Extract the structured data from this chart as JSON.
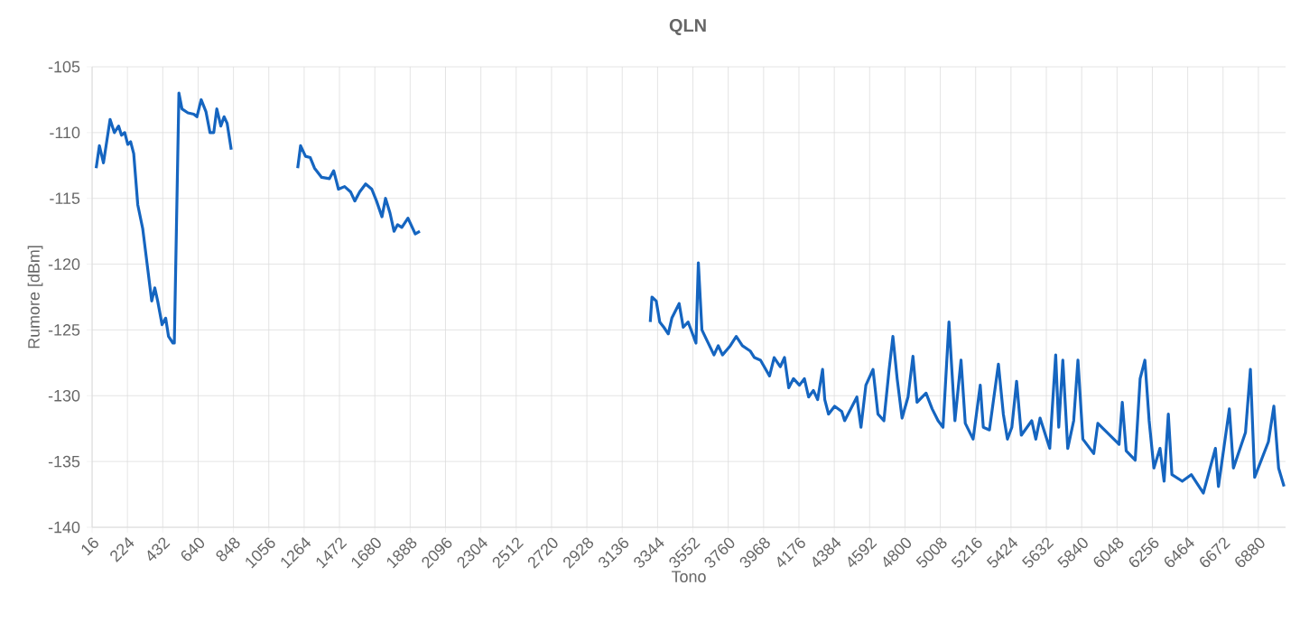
{
  "chart_data": {
    "type": "line",
    "title": "QLN",
    "xlabel": "Tono",
    "ylabel": "Rumore [dBm]",
    "x": [
      40,
      59,
      83,
      122,
      147,
      172,
      189,
      208,
      226,
      243,
      261,
      285,
      314,
      367,
      385,
      402,
      428,
      449,
      466,
      492,
      500,
      527,
      545,
      580,
      615,
      633,
      658,
      686,
      710,
      732,
      750,
      774,
      793,
      811,
      835,
      1056,
      1226,
      1243,
      1272,
      1300,
      1325,
      1367,
      1413,
      1438,
      1466,
      1502,
      1537,
      1562,
      1591,
      1626,
      1662,
      1690,
      1722,
      1743,
      1769,
      1793,
      1814,
      1839,
      1875,
      1918,
      1945,
      2720,
      3301,
      3311,
      3336,
      3357,
      3381,
      3407,
      3428,
      3471,
      3495,
      3524,
      3570,
      3584,
      3605,
      3631,
      3676,
      3701,
      3726,
      3772,
      3807,
      3843,
      3889,
      3914,
      3950,
      4003,
      4030,
      4066,
      4091,
      4116,
      4144,
      4179,
      4208,
      4233,
      4261,
      4286,
      4315,
      4328,
      4350,
      4386,
      4428,
      4445,
      4517,
      4541,
      4570,
      4612,
      4641,
      4676,
      4705,
      4729,
      4754,
      4783,
      4818,
      4847,
      4871,
      4924,
      4960,
      4995,
      5024,
      5059,
      5094,
      5130,
      5155,
      5201,
      5243,
      5261,
      5297,
      5350,
      5379,
      5403,
      5429,
      5457,
      5485,
      5546,
      5570,
      5595,
      5652,
      5687,
      5705,
      5729,
      5758,
      5793,
      5818,
      5847,
      5911,
      5935,
      6060,
      6079,
      6102,
      6155,
      6184,
      6212,
      6237,
      6265,
      6301,
      6325,
      6350,
      6371,
      6432,
      6485,
      6556,
      6627,
      6645,
      6709,
      6733,
      6804,
      6833,
      6858,
      6939,
      6971,
      6999,
      7031
    ],
    "series": [
      {
        "color": "#1565c0",
        "values": [
          -112.7,
          -111,
          -112.3,
          -109,
          -110,
          -109.5,
          -110.2,
          -110,
          -110.9,
          -110.7,
          -111.6,
          -115.5,
          -117.3,
          -122.8,
          -121.8,
          -122.8,
          -124.6,
          -124.1,
          -125.5,
          -126,
          -126,
          -107,
          -108.2,
          -108.5,
          -108.6,
          -108.8,
          -107.5,
          -108.4,
          -110,
          -110,
          -108.2,
          -109.5,
          -108.8,
          -109.3,
          -111.3,
          null,
          -112.7,
          -111,
          -111.8,
          -111.9,
          -112.7,
          -113.4,
          -113.5,
          -112.9,
          -114.3,
          -114.1,
          -114.5,
          -115.2,
          -114.5,
          -113.9,
          -114.3,
          -115.2,
          -116.4,
          -115,
          -116.1,
          -117.5,
          -117,
          -117.2,
          -116.5,
          -117.7,
          -117.5,
          null,
          -124.4,
          -122.5,
          -122.8,
          -124.4,
          -124.8,
          -125.3,
          -124.1,
          -123,
          -124.8,
          -124.4,
          -126,
          -119.9,
          -125,
          -125.7,
          -126.9,
          -126.2,
          -126.9,
          -126.2,
          -125.5,
          -126.2,
          -126.6,
          -127.1,
          -127.3,
          -128.5,
          -127.1,
          -127.8,
          -127.1,
          -129.4,
          -128.7,
          -129.2,
          -128.7,
          -130.1,
          -129.6,
          -130.3,
          -128,
          -130.3,
          -131.4,
          -130.8,
          -131.2,
          -131.9,
          -130.1,
          -132.4,
          -129.2,
          -128,
          -131.4,
          -131.9,
          -128.2,
          -125.5,
          -128.7,
          -131.7,
          -130.1,
          -127,
          -130.5,
          -129.8,
          -131,
          -131.9,
          -132.4,
          -124.4,
          -131.9,
          -127.3,
          -132.1,
          -133.3,
          -129.2,
          -132.4,
          -132.6,
          -127.6,
          -131.4,
          -133.3,
          -132.4,
          -128.9,
          -133,
          -131.9,
          -133.3,
          -131.7,
          -134,
          -126.9,
          -132.4,
          -127.3,
          -134,
          -131.9,
          -127.3,
          -133.3,
          -134.4,
          -132.1,
          -133.7,
          -130.5,
          -134.2,
          -134.9,
          -128.7,
          -127.3,
          -131.9,
          -135.5,
          -134,
          -136.5,
          -131.4,
          -136,
          -136.5,
          -136,
          -137.4,
          -134,
          -136.9,
          -131,
          -135.5,
          -132.8,
          -128,
          -136.2,
          -133.5,
          -130.8,
          -135.5,
          -136.9
        ]
      }
    ],
    "xlim": [
      16,
      7040
    ],
    "ylim": [
      -140,
      -105
    ],
    "xticks": [
      16,
      224,
      432,
      640,
      848,
      1056,
      1264,
      1472,
      1680,
      1888,
      2096,
      2304,
      2512,
      2720,
      2928,
      3136,
      3344,
      3552,
      3760,
      3968,
      4176,
      4384,
      4592,
      4800,
      5008,
      5216,
      5424,
      5632,
      5840,
      6048,
      6256,
      6464,
      6672,
      6880
    ],
    "yticks": [
      -140,
      -135,
      -130,
      -125,
      -120,
      -115,
      -110,
      -105
    ],
    "grid": true
  }
}
